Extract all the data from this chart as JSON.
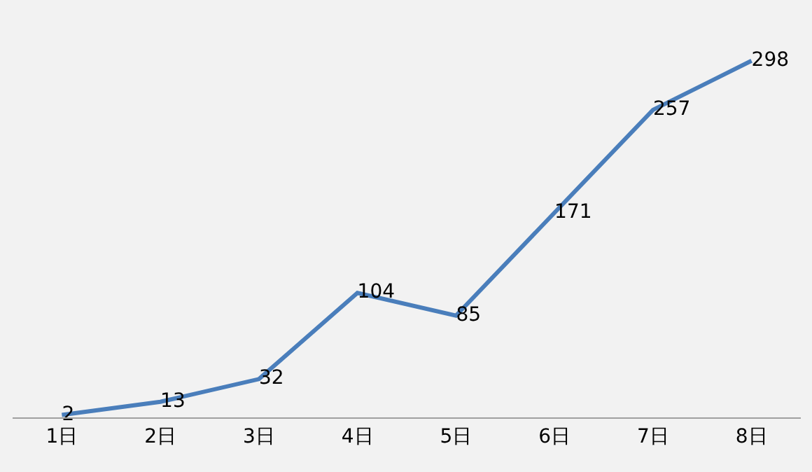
{
  "chart_data": {
    "type": "line",
    "categories": [
      "1日",
      "2日",
      "3日",
      "4日",
      "5日",
      "6日",
      "7日",
      "8日"
    ],
    "series": [
      {
        "color": "#4a7ebb",
        "values": [
          2,
          13,
          32,
          104,
          85,
          171,
          257,
          298
        ]
      }
    ],
    "data_labels": true,
    "grid": false,
    "legend": false,
    "marker": "none",
    "line_style": "solid",
    "tick_labels": "x"
  }
}
